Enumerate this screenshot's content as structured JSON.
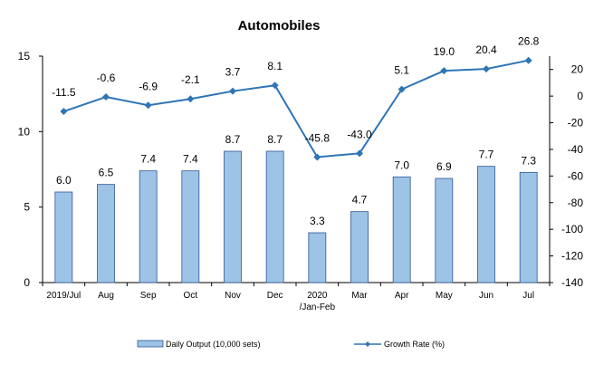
{
  "chart_data": {
    "type": "bar+line",
    "title": "Automobiles",
    "categories": [
      [
        "2019/Jul"
      ],
      [
        "Aug"
      ],
      [
        "Sep"
      ],
      [
        "Oct"
      ],
      [
        "Nov"
      ],
      [
        "Dec"
      ],
      [
        "2020",
        "/Jan-Feb"
      ],
      [
        "Mar"
      ],
      [
        "Apr"
      ],
      [
        "May"
      ],
      [
        "Jun"
      ],
      [
        "Jul"
      ]
    ],
    "series": [
      {
        "name": "Daily Output (10,000 sets)",
        "type": "bar",
        "axis": "left",
        "values": [
          6.0,
          6.5,
          7.4,
          7.4,
          8.7,
          8.7,
          3.3,
          4.7,
          7.0,
          6.9,
          7.7,
          7.3
        ],
        "labels": [
          "6.0",
          "6.5",
          "7.4",
          "7.4",
          "8.7",
          "8.7",
          "3.3",
          "4.7",
          "7.0",
          "6.9",
          "7.7",
          "7.3"
        ],
        "color": "#9dc3e6",
        "edge_color": "#2f5597"
      },
      {
        "name": "Growth Rate (%)",
        "type": "line",
        "axis": "right",
        "values": [
          -11.5,
          -0.6,
          -6.9,
          -2.1,
          3.7,
          8.1,
          -45.8,
          -43.0,
          5.1,
          19.0,
          20.4,
          26.8
        ],
        "labels": [
          "-11.5",
          "-0.6",
          "-6.9",
          "-2.1",
          "3.7",
          "8.1",
          "-45.8",
          "-43.0",
          "5.1",
          "19.0",
          "20.4",
          "26.8"
        ],
        "color": "#2e75b6"
      }
    ],
    "y_left": {
      "min": 0,
      "max": 15,
      "ticks": [
        0,
        5,
        10,
        15
      ]
    },
    "y_right": {
      "min": -140,
      "max": 30,
      "ticks": [
        20,
        0,
        -20,
        -40,
        -60,
        -80,
        -100,
        -120,
        -140
      ]
    },
    "grid": false,
    "legend_position": "bottom"
  }
}
